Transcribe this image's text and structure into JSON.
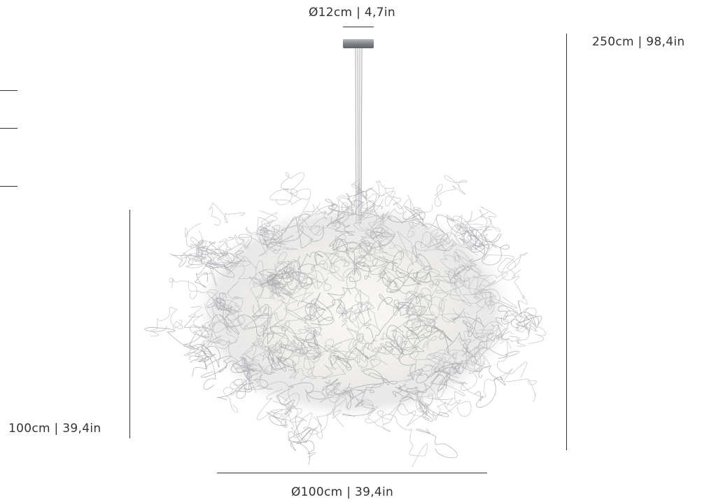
{
  "dimensions": {
    "canopy_diameter": "Ø12cm | 4,7in",
    "total_height": "250cm | 98,4in",
    "shade_height": "100cm | 39,4in",
    "shade_diameter": "Ø100cm | 39,4in"
  },
  "colors": {
    "line": "#333333",
    "canopy": "#8a8d91",
    "wire": "#b9b9bd",
    "glow": "#f4f2ee"
  },
  "illustration": {
    "subject": "wire-cloud-pendant-lamp"
  }
}
